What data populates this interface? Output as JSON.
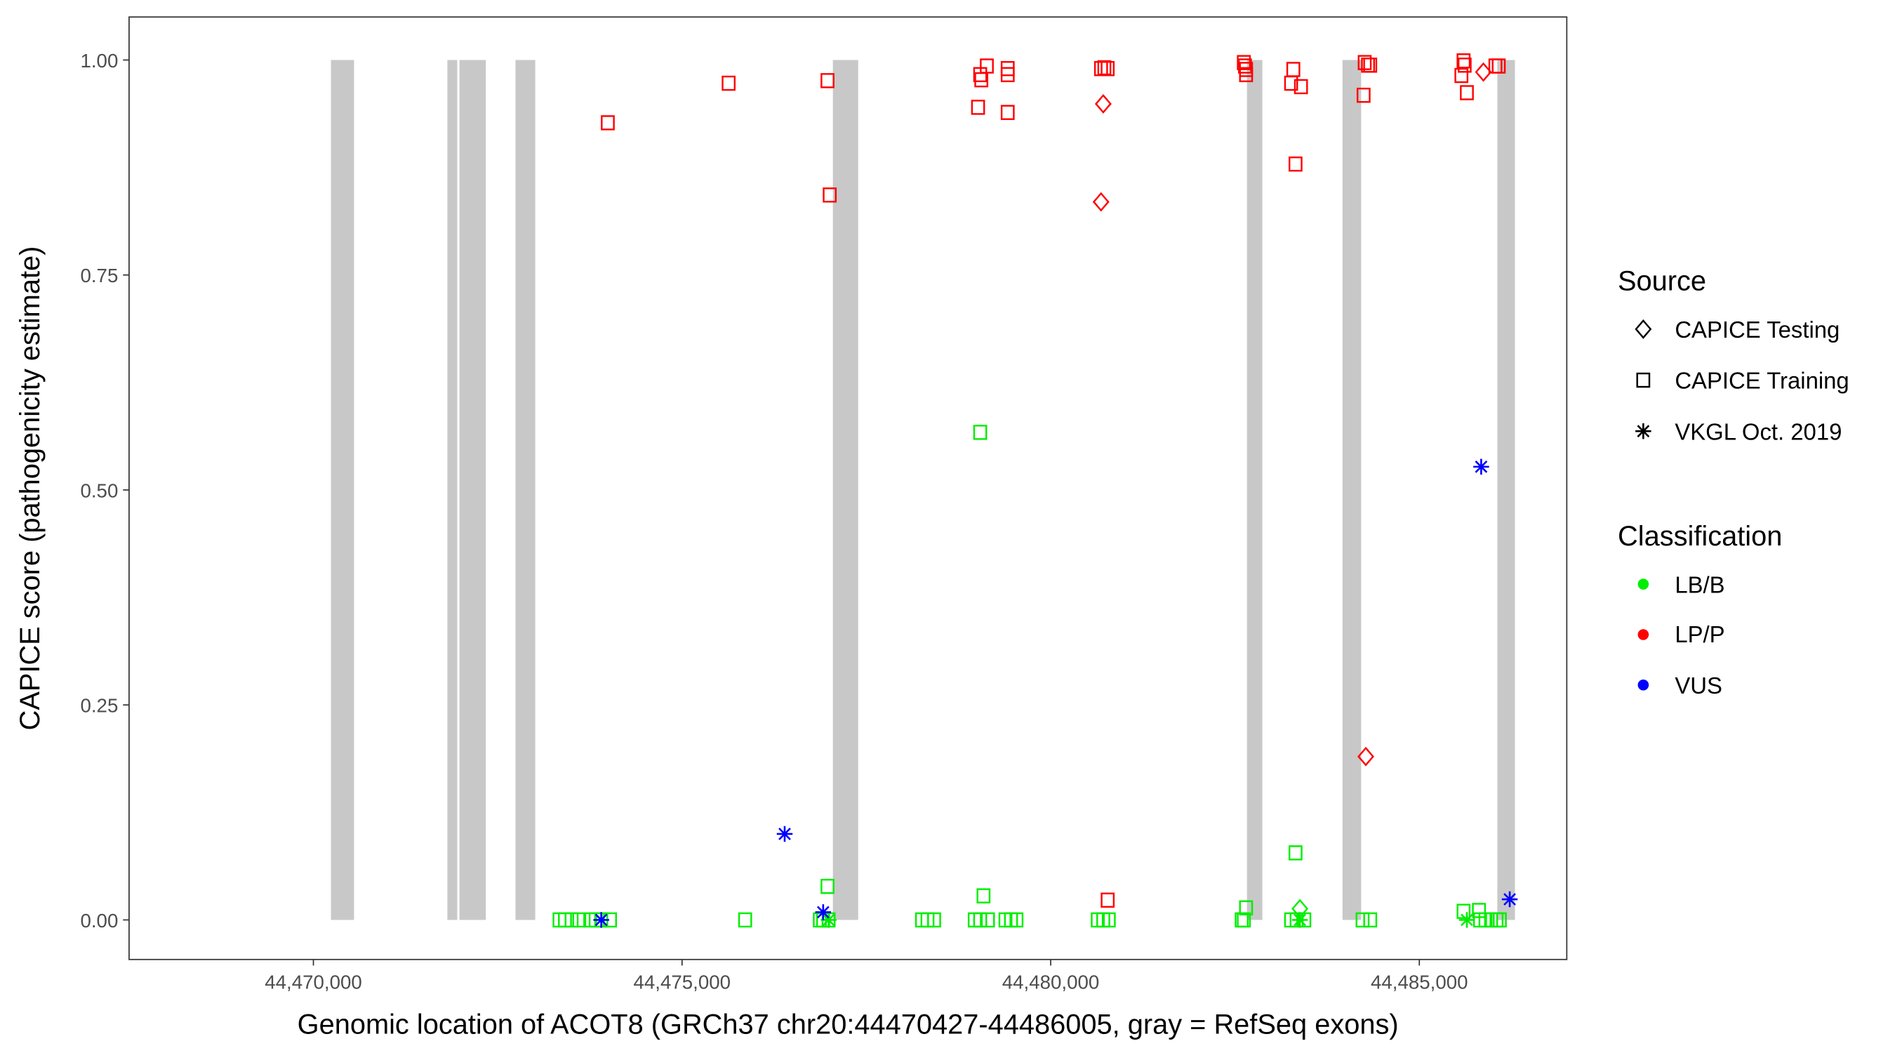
{
  "chart_data": {
    "type": "scatter",
    "xlabel": "Genomic location of ACOT8 (GRCh37 chr20:44470427-44486005, gray = RefSeq exons)",
    "ylabel": "CAPICE score (pathogenicity estimate)",
    "xlim": [
      44467500,
      44487000
    ],
    "ylim": [
      -0.046,
      1.05
    ],
    "xticks": [
      44470000,
      44475000,
      44480000,
      44485000
    ],
    "xtick_labels": [
      "44,470,000",
      "44,475,000",
      "44,480,000",
      "44,485,000"
    ],
    "yticks": [
      0,
      0.25,
      0.5,
      0.75,
      1.0
    ],
    "ytick_labels": [
      "0.00",
      "0.25",
      "0.50",
      "0.75",
      "1.00"
    ],
    "grid": false,
    "legend_placement": "right",
    "legend": {
      "source_title": "Source",
      "sources": [
        {
          "key": "T",
          "label": "CAPICE Testing",
          "shape": "diamond"
        },
        {
          "key": "R",
          "label": "CAPICE Training",
          "shape": "square"
        },
        {
          "key": "V",
          "label": "VKGL Oct. 2019",
          "shape": "asterisk"
        }
      ],
      "class_title": "Classification",
      "classes": [
        {
          "key": "B",
          "label": "LB/B",
          "color": "#00ee00"
        },
        {
          "key": "P",
          "label": "LP/P",
          "color": "#ff0000"
        },
        {
          "key": "U",
          "label": "VUS",
          "color": "#0000ff"
        }
      ]
    },
    "exons": [
      [
        44470238,
        44470551
      ],
      [
        44471817,
        44471951
      ],
      [
        44471981,
        44472339
      ],
      [
        44472741,
        44473009
      ],
      [
        44477046,
        44477389
      ],
      [
        44482662,
        44482871
      ],
      [
        44483958,
        44484211
      ],
      [
        44486058,
        44486297
      ]
    ],
    "points": [
      [
        44473993,
        0.927,
        "R",
        "P"
      ],
      [
        44475632,
        0.973,
        "R",
        "P"
      ],
      [
        44476973,
        0.976,
        "R",
        "P"
      ],
      [
        44477003,
        0.843,
        "R",
        "P"
      ],
      [
        44479015,
        0.945,
        "R",
        "P"
      ],
      [
        44479044,
        0.983,
        "R",
        "P"
      ],
      [
        44479059,
        0.977,
        "R",
        "P"
      ],
      [
        44479134,
        0.993,
        "R",
        "P"
      ],
      [
        44479417,
        0.99,
        "R",
        "P"
      ],
      [
        44479417,
        0.983,
        "R",
        "P"
      ],
      [
        44479417,
        0.939,
        "R",
        "P"
      ],
      [
        44480683,
        0.99,
        "R",
        "P"
      ],
      [
        44480728,
        0.991,
        "R",
        "P"
      ],
      [
        44480773,
        0.99,
        "R",
        "P"
      ],
      [
        44480773,
        0.023,
        "R",
        "P"
      ],
      [
        44482620,
        0.997,
        "R",
        "P"
      ],
      [
        44482635,
        0.993,
        "R",
        "P"
      ],
      [
        44482650,
        0.989,
        "R",
        "P"
      ],
      [
        44482650,
        0.983,
        "R",
        "P"
      ],
      [
        44483291,
        0.989,
        "R",
        "P"
      ],
      [
        44483261,
        0.973,
        "R",
        "P"
      ],
      [
        44483395,
        0.969,
        "R",
        "P"
      ],
      [
        44483321,
        0.879,
        "R",
        "P"
      ],
      [
        44484259,
        0.997,
        "R",
        "P"
      ],
      [
        44484304,
        0.994,
        "R",
        "P"
      ],
      [
        44484334,
        0.994,
        "R",
        "P"
      ],
      [
        44484244,
        0.959,
        "R",
        "P"
      ],
      [
        44485600,
        0.999,
        "R",
        "P"
      ],
      [
        44485615,
        0.994,
        "R",
        "P"
      ],
      [
        44485571,
        0.982,
        "R",
        "P"
      ],
      [
        44485645,
        0.962,
        "R",
        "P"
      ],
      [
        44486032,
        0.993,
        "R",
        "P"
      ],
      [
        44486077,
        0.993,
        "R",
        "P"
      ],
      [
        44480713,
        0.949,
        "T",
        "P"
      ],
      [
        44480683,
        0.835,
        "T",
        "P"
      ],
      [
        44484274,
        0.19,
        "T",
        "P"
      ],
      [
        44485869,
        0.986,
        "T",
        "P"
      ],
      [
        44473338,
        0,
        "R",
        "B"
      ],
      [
        44473412,
        0,
        "R",
        "B"
      ],
      [
        44473502,
        0,
        "R",
        "B"
      ],
      [
        44473606,
        0,
        "R",
        "B"
      ],
      [
        44473755,
        0,
        "R",
        "B"
      ],
      [
        44473829,
        0,
        "R",
        "B"
      ],
      [
        44473904,
        0,
        "R",
        "B"
      ],
      [
        44474023,
        0,
        "R",
        "B"
      ],
      [
        44475856,
        0,
        "R",
        "B"
      ],
      [
        44476869,
        0,
        "R",
        "B"
      ],
      [
        44476914,
        0,
        "R",
        "B"
      ],
      [
        44476988,
        0,
        "R",
        "B"
      ],
      [
        44478255,
        0,
        "R",
        "B"
      ],
      [
        44478329,
        0,
        "R",
        "B"
      ],
      [
        44478419,
        0,
        "R",
        "B"
      ],
      [
        44478970,
        0,
        "R",
        "B"
      ],
      [
        44479044,
        0,
        "R",
        "B"
      ],
      [
        44479149,
        0,
        "R",
        "B"
      ],
      [
        44479387,
        0,
        "R",
        "B"
      ],
      [
        44479462,
        0,
        "R",
        "B"
      ],
      [
        44479536,
        0,
        "R",
        "B"
      ],
      [
        44480639,
        0,
        "R",
        "B"
      ],
      [
        44480713,
        0,
        "R",
        "B"
      ],
      [
        44480788,
        0,
        "R",
        "B"
      ],
      [
        44482591,
        0,
        "R",
        "B"
      ],
      [
        44482620,
        0,
        "R",
        "B"
      ],
      [
        44483261,
        0,
        "R",
        "B"
      ],
      [
        44483336,
        0,
        "R",
        "B"
      ],
      [
        44483440,
        0,
        "R",
        "B"
      ],
      [
        44484230,
        0,
        "R",
        "B"
      ],
      [
        44484334,
        0,
        "R",
        "B"
      ],
      [
        44485824,
        0,
        "R",
        "B"
      ],
      [
        44485898,
        0,
        "R",
        "B"
      ],
      [
        44485973,
        0,
        "R",
        "B"
      ],
      [
        44486047,
        0,
        "R",
        "B"
      ],
      [
        44486092,
        0,
        "R",
        "B"
      ],
      [
        44479044,
        0.567,
        "R",
        "B"
      ],
      [
        44476973,
        0.039,
        "R",
        "B"
      ],
      [
        44479089,
        0.028,
        "R",
        "B"
      ],
      [
        44483321,
        0.078,
        "R",
        "B"
      ],
      [
        44482650,
        0.014,
        "R",
        "B"
      ],
      [
        44485600,
        0.01,
        "R",
        "B"
      ],
      [
        44485809,
        0.011,
        "R",
        "B"
      ],
      [
        44483380,
        0.013,
        "T",
        "B"
      ],
      [
        44476988,
        0,
        "V",
        "B"
      ],
      [
        44483380,
        0,
        "V",
        "B"
      ],
      [
        44485645,
        0,
        "V",
        "B"
      ],
      [
        44473904,
        0,
        "V",
        "U"
      ],
      [
        44476392,
        0.1,
        "V",
        "U"
      ],
      [
        44476914,
        0.009,
        "V",
        "U"
      ],
      [
        44485839,
        0.527,
        "V",
        "U"
      ],
      [
        44486226,
        0.024,
        "V",
        "U"
      ]
    ]
  }
}
